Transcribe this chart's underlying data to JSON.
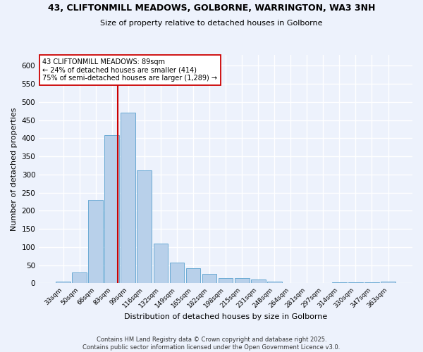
{
  "title1": "43, CLIFTONMILL MEADOWS, GOLBORNE, WARRINGTON, WA3 3NH",
  "title2": "Size of property relative to detached houses in Golborne",
  "xlabel": "Distribution of detached houses by size in Golborne",
  "ylabel": "Number of detached properties",
  "categories": [
    "33sqm",
    "50sqm",
    "66sqm",
    "83sqm",
    "99sqm",
    "116sqm",
    "132sqm",
    "149sqm",
    "165sqm",
    "182sqm",
    "198sqm",
    "215sqm",
    "231sqm",
    "248sqm",
    "264sqm",
    "281sqm",
    "297sqm",
    "314sqm",
    "330sqm",
    "347sqm",
    "363sqm"
  ],
  "values": [
    5,
    31,
    230,
    408,
    470,
    312,
    110,
    57,
    41,
    27,
    15,
    15,
    10,
    4,
    0,
    0,
    0,
    3,
    3,
    3,
    4
  ],
  "bar_color": "#b8d0ea",
  "bar_edge_color": "#6aaad4",
  "vline_color": "#cc0000",
  "annotation_text": "43 CLIFTONMILL MEADOWS: 89sqm\n← 24% of detached houses are smaller (414)\n75% of semi-detached houses are larger (1,289) →",
  "annotation_box_color": "white",
  "annotation_box_edge": "#cc0000",
  "background_color": "#edf2fc",
  "footer": "Contains HM Land Registry data © Crown copyright and database right 2025.\nContains public sector information licensed under the Open Government Licence v3.0.",
  "ylim": [
    0,
    630
  ],
  "yticks": [
    0,
    50,
    100,
    150,
    200,
    250,
    300,
    350,
    400,
    450,
    500,
    550,
    600
  ]
}
